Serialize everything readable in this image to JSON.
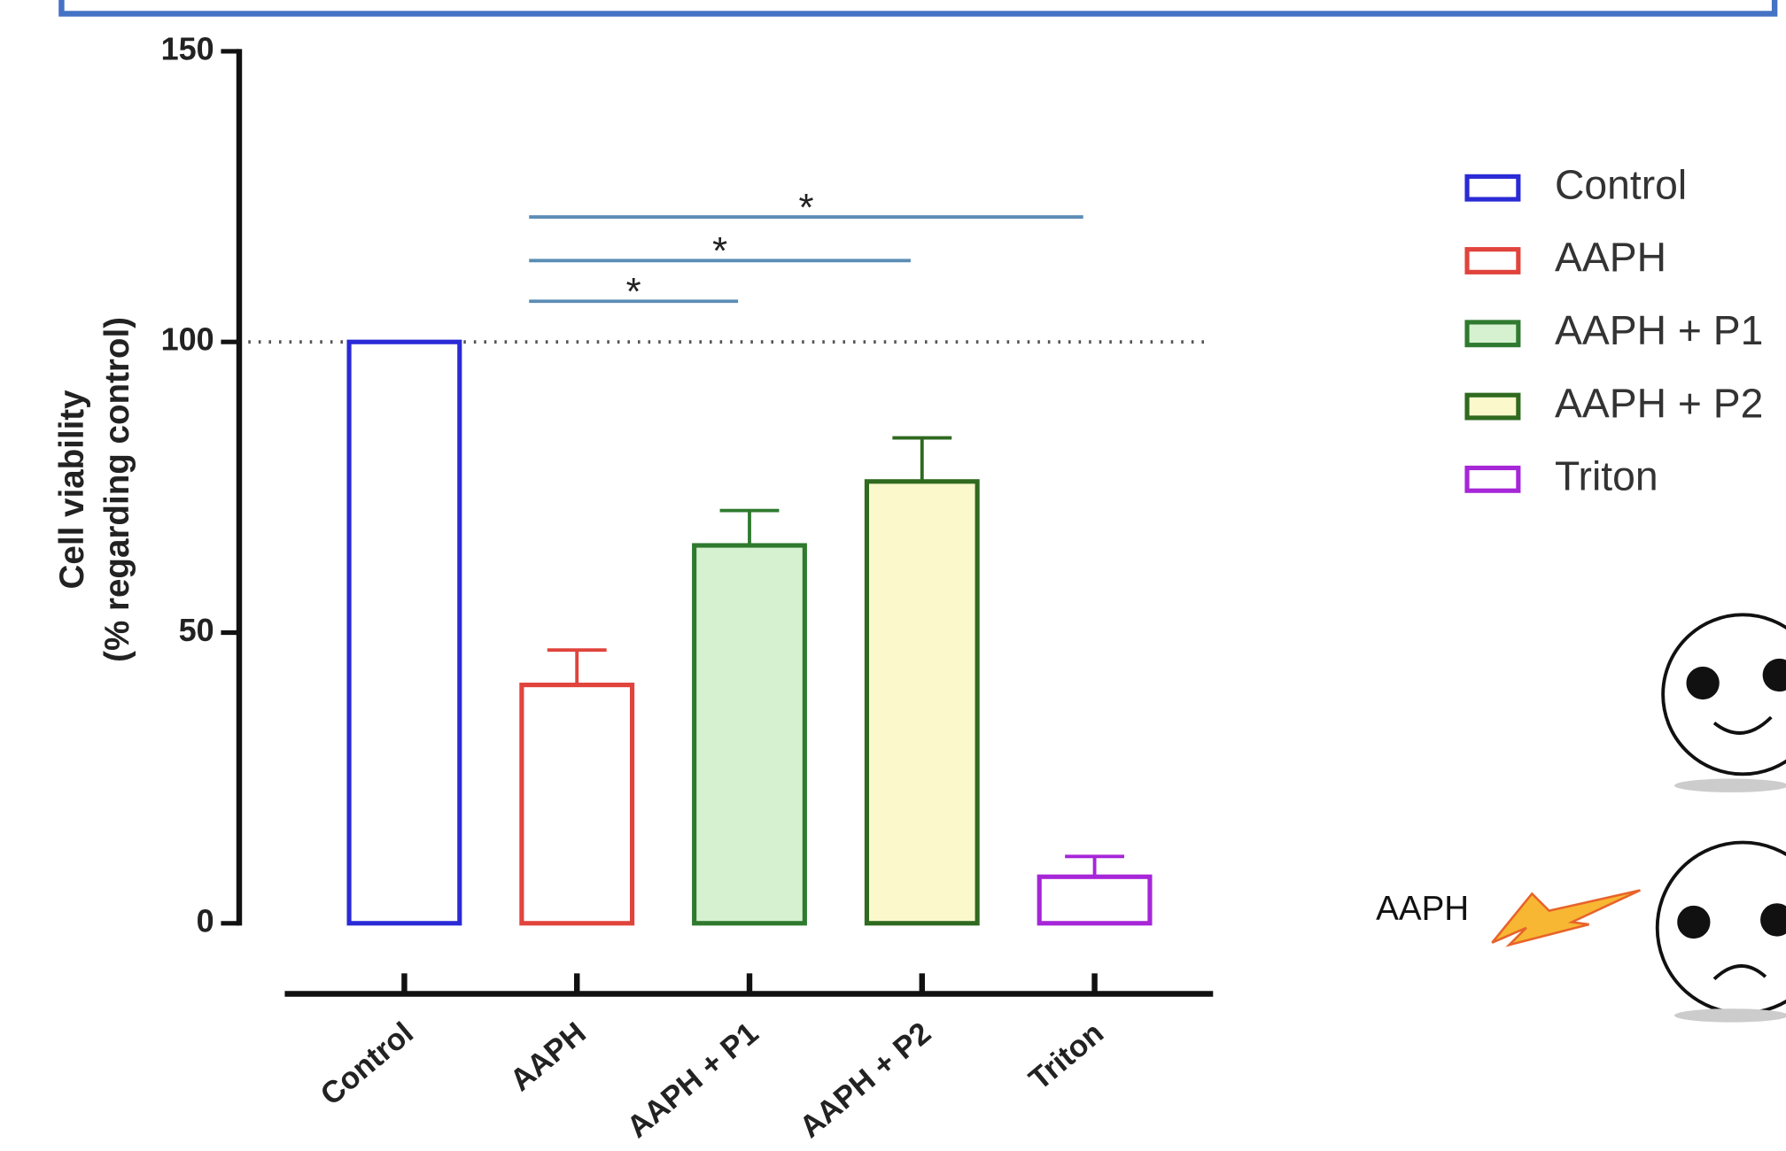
{
  "chart_data": {
    "type": "bar",
    "ylabel": [
      "Cell viability",
      "(% regarding control)"
    ],
    "categories": [
      "Control",
      "AAPH",
      "AAPH + P1",
      "AAPH + P2",
      "Triton"
    ],
    "values": [
      100,
      41,
      65,
      76,
      8
    ],
    "errors": [
      null,
      6,
      6,
      7.5,
      3.5
    ],
    "colors": [
      "#2a2ad6",
      "#e0443c",
      "#2f7a2f",
      "#2f6a1f",
      "#a626d8"
    ],
    "fills": [
      "#ffffff",
      "#ffffff",
      "#d6f1cf",
      "#fbf8cc",
      "#ffffff"
    ],
    "ylim": [
      0,
      150
    ],
    "yticks": [
      0,
      50,
      100,
      150
    ],
    "reference_line": 100,
    "significance": [
      {
        "from": 1,
        "to": 2,
        "y": 107,
        "label": "*"
      },
      {
        "from": 1,
        "to": 3,
        "y": 114,
        "label": "*"
      },
      {
        "from": 1,
        "to": 4,
        "y": 121.5,
        "label": "*"
      }
    ],
    "legend": "right",
    "illustration_label": "AAPH"
  }
}
